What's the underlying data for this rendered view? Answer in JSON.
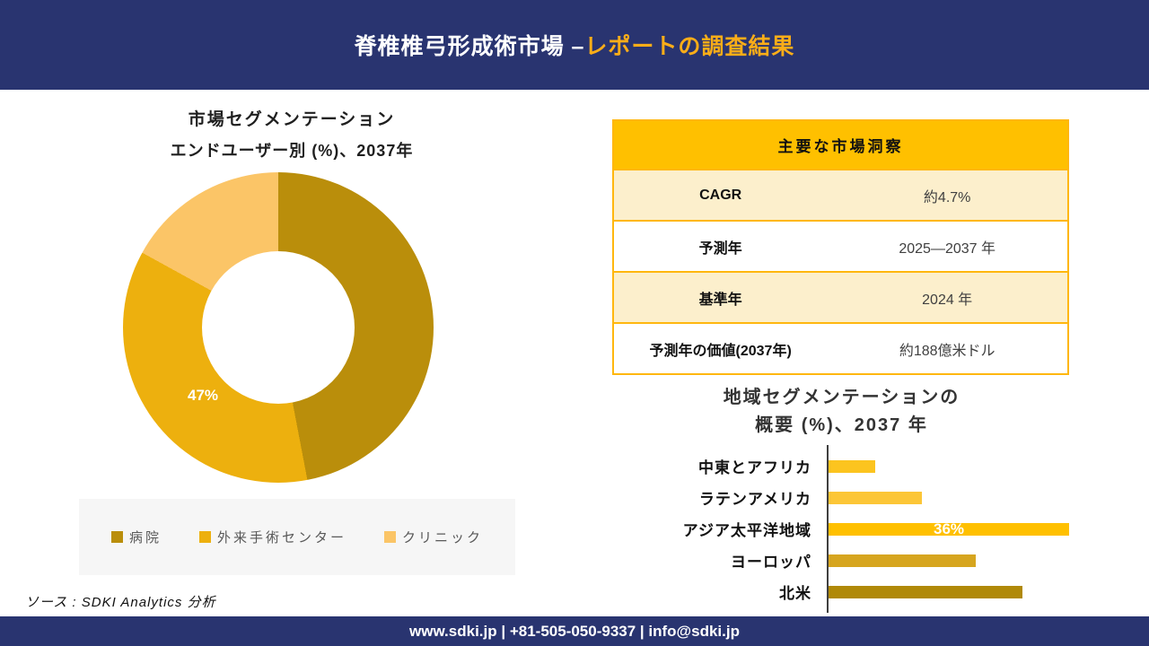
{
  "header": {
    "title_white": "脊椎椎弓形成術市場 –",
    "title_accent": "レポートの調査結果",
    "bg_color": "#293470",
    "accent_color": "#FBAD18"
  },
  "insights_table": {
    "title": "主要な市場洞察",
    "header_bg": "#FFC000",
    "alt_row_bg": "#FCEFCC",
    "rows": [
      {
        "label": "CAGR",
        "value": "約4.7%"
      },
      {
        "label": "予測年",
        "value": "2025—2037 年"
      },
      {
        "label": "基準年",
        "value": "2024 年"
      },
      {
        "label": "予測年の価値(2037年)",
        "value": "約188億米ドル"
      }
    ]
  },
  "chart_data": [
    {
      "type": "pie",
      "donut": true,
      "title": "市場セグメンテーション",
      "subtitle": "エンドユーザー別 (%)、2037年",
      "labels": [
        "病院",
        "外来手術センター",
        "クリニック"
      ],
      "values": [
        47,
        36,
        17
      ],
      "colors": [
        "#BA8E0B",
        "#EDB00E",
        "#FBC567"
      ],
      "shown_label": {
        "text": "47%",
        "slice": "病院"
      },
      "legend_position": "bottom"
    },
    {
      "type": "bar",
      "orientation": "horizontal",
      "title_line1": "地域セグメンテーションの",
      "title_line2": "概要 (%)、2037 年",
      "categories": [
        "中東とアフリカ",
        "ラテンアメリカ",
        "アジア太平洋地域",
        "ヨーロッパ",
        "北米"
      ],
      "values": [
        7,
        14,
        36,
        22,
        29
      ],
      "colors": [
        "#FCC41F",
        "#FCC637",
        "#FFC000",
        "#D6A51F",
        "#B08908"
      ],
      "shown_label": {
        "text": "36%",
        "category": "アジア太平洋地域"
      },
      "xlim": [
        0,
        36
      ],
      "grid": false,
      "axis_color": "#3F3F3F"
    }
  ],
  "source_note": "ソース : SDKI Analytics 分析",
  "footer": {
    "text": "www.sdki.jp | +81-505-050-9337 | info@sdki.jp",
    "bg_color": "#293470"
  }
}
